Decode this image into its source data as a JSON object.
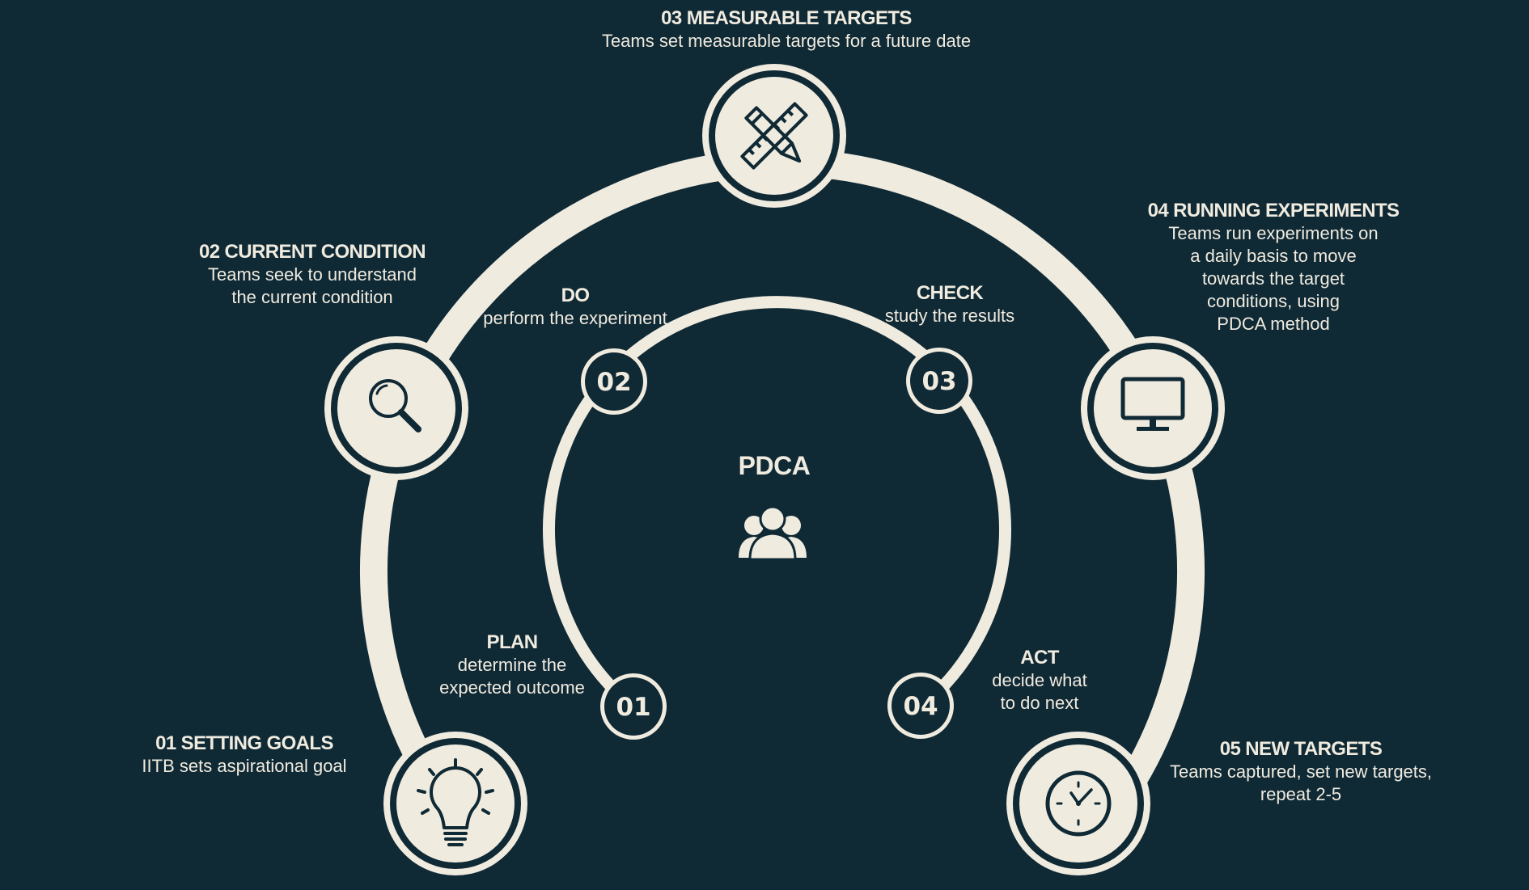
{
  "center": {
    "title": "PDCA",
    "icon": "team-icon"
  },
  "outer_steps": [
    {
      "title": "01 SETTING GOALS",
      "lines": [
        "IITB sets aspirational goal"
      ],
      "icon": "lightbulb-icon"
    },
    {
      "title": "02 CURRENT CONDITION",
      "lines": [
        "Teams seek to understand",
        "the current condition"
      ],
      "icon": "magnifier-icon"
    },
    {
      "title": "03 MEASURABLE TARGETS",
      "lines": [
        "Teams set measurable targets for a future date"
      ],
      "icon": "pencil-ruler-icon"
    },
    {
      "title": "04 RUNNING EXPERIMENTS",
      "lines": [
        "Teams run experiments on",
        "a daily basis to move",
        "towards the target",
        "conditions, using",
        "PDCA method"
      ],
      "icon": "monitor-icon"
    },
    {
      "title": "05 NEW TARGETS",
      "lines": [
        "Teams captured, set new targets,",
        "repeat 2-5"
      ],
      "icon": "clock-icon"
    }
  ],
  "inner_steps": [
    {
      "number": "01",
      "title": "PLAN",
      "lines": [
        "determine the",
        "expected outcome"
      ]
    },
    {
      "number": "02",
      "title": "DO",
      "lines": [
        "perform the experiment"
      ]
    },
    {
      "number": "03",
      "title": "CHECK",
      "lines": [
        "study the results"
      ]
    },
    {
      "number": "04",
      "title": "ACT",
      "lines": [
        "decide what",
        "to do next"
      ]
    }
  ],
  "colors": {
    "background": "#0f2935",
    "cream": "#f0ebdf"
  }
}
